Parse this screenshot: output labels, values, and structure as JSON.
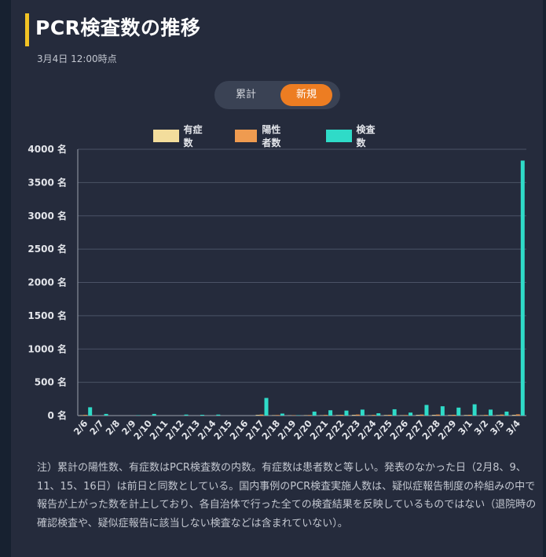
{
  "header": {
    "title": "PCR検査数の推移",
    "timestamp": "3月4日 12:00時点"
  },
  "toggle": {
    "cumulative_label": "累計",
    "new_label": "新規",
    "selected": "新規"
  },
  "colors": {
    "accent": "#f2c324",
    "symptomatic": "#f3dd9c",
    "positive": "#ef9b50",
    "tests": "#2fdbc8",
    "toggle_active": "#ed7d22"
  },
  "chart_data": {
    "type": "bar",
    "unit": "名",
    "ylim": [
      0,
      4000
    ],
    "yticks": [
      0,
      500,
      1000,
      1500,
      2000,
      2500,
      3000,
      3500,
      4000
    ],
    "grid": true,
    "legend_position": "top-center",
    "categories": [
      "2/6",
      "2/7",
      "2/8",
      "2/9",
      "2/10",
      "2/11",
      "2/12",
      "2/13",
      "2/14",
      "2/15",
      "2/16",
      "2/17",
      "2/18",
      "2/19",
      "2/20",
      "2/21",
      "2/22",
      "2/23",
      "2/24",
      "2/25",
      "2/26",
      "2/27",
      "2/28",
      "2/29",
      "3/1",
      "3/2",
      "3/3",
      "3/4"
    ],
    "series": [
      {
        "name": "有症数",
        "values": [
          5,
          0,
          0,
          0,
          0,
          0,
          0,
          0,
          0,
          0,
          0,
          10,
          5,
          3,
          5,
          5,
          8,
          10,
          5,
          8,
          5,
          10,
          10,
          8,
          8,
          5,
          8,
          10
        ]
      },
      {
        "name": "陽性者数",
        "values": [
          10,
          0,
          0,
          0,
          0,
          0,
          0,
          0,
          0,
          0,
          0,
          15,
          8,
          5,
          8,
          10,
          12,
          15,
          10,
          12,
          8,
          15,
          15,
          12,
          12,
          10,
          15,
          18
        ]
      },
      {
        "name": "検査数",
        "values": [
          125,
          25,
          0,
          5,
          25,
          0,
          15,
          12,
          15,
          0,
          0,
          265,
          30,
          5,
          60,
          80,
          75,
          90,
          35,
          95,
          45,
          160,
          140,
          120,
          170,
          90,
          60,
          3830
        ]
      }
    ]
  },
  "note": "注）累計の陽性数、有症数はPCR検査数の内数。有症数は患者数と等しい。発表のなかった日（2月8、9、11、15、16日）は前日と同数としている。国内事例のPCR検査実施人数は、疑似症報告制度の枠組みの中で報告が上がった数を計上しており、各自治体で行った全ての検査結果を反映しているものではない（退院時の確認検査や、疑似症報告に該当しない検査などは含まれていない）。"
}
